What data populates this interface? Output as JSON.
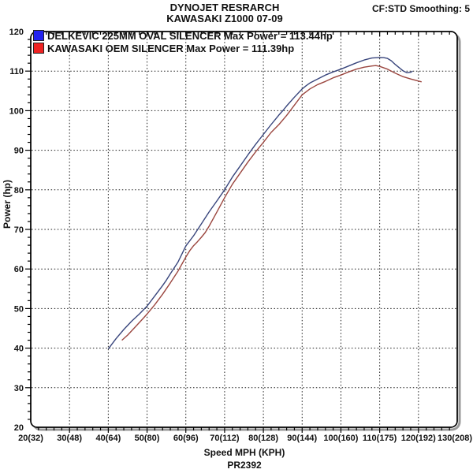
{
  "header": {
    "title_line1": "DYNOJET RESRARCH",
    "title_line2": "KAWASAKI Z1000 07-09",
    "cf_text": "CF:STD Smoothing: 5"
  },
  "chart_data": {
    "type": "line",
    "xlabel": "Speed MPH (KPH)",
    "ylabel": "Power (hp)",
    "footer": "PR2392",
    "xlim": [
      20,
      130
    ],
    "ylim": [
      20,
      120
    ],
    "x_major_step": 10,
    "x_minor_step": 2,
    "y_major_step": 10,
    "y_minor_step": 2,
    "grid": "dotted",
    "legend_position": "top-left-inside",
    "x_tick_labels": [
      "20(32)",
      "30(48)",
      "40(64)",
      "50(80)",
      "60(96)",
      "70(112)",
      "80(128)",
      "90(144)",
      "100(160)",
      "110(175)",
      "120(192)",
      "130(208)"
    ],
    "y_tick_labels": [
      "20",
      "30",
      "40",
      "50",
      "60",
      "70",
      "80",
      "90",
      "100",
      "110",
      "120"
    ],
    "series": [
      {
        "name": "DELKEVIC 225MM OVAL SILENCER Max Power = 113.44hp",
        "max_power_hp": 113.44,
        "color": "#38457c",
        "swatch_color": "#2222ee",
        "points": [
          [
            40,
            39.8
          ],
          [
            42,
            42.4
          ],
          [
            44,
            44.7
          ],
          [
            46,
            46.8
          ],
          [
            48,
            48.6
          ],
          [
            50,
            50.6
          ],
          [
            52,
            53.2
          ],
          [
            54,
            55.8
          ],
          [
            55,
            57.2
          ],
          [
            56,
            58.8
          ],
          [
            58,
            61.8
          ],
          [
            60,
            65.8
          ],
          [
            62,
            68.4
          ],
          [
            64,
            71.4
          ],
          [
            66,
            74.4
          ],
          [
            68,
            77.2
          ],
          [
            70,
            80
          ],
          [
            72,
            83.2
          ],
          [
            74,
            86
          ],
          [
            76,
            88.8
          ],
          [
            78,
            91.5
          ],
          [
            80,
            94
          ],
          [
            82,
            96.5
          ],
          [
            84,
            98.9
          ],
          [
            85,
            100
          ],
          [
            86,
            101.2
          ],
          [
            88,
            103.4
          ],
          [
            90,
            105.5
          ],
          [
            91,
            106.3
          ],
          [
            92,
            107
          ],
          [
            94,
            108
          ],
          [
            96,
            109
          ],
          [
            98,
            109.8
          ],
          [
            100,
            110.5
          ],
          [
            102,
            111.3
          ],
          [
            104,
            112.1
          ],
          [
            106,
            112.8
          ],
          [
            108,
            113.3
          ],
          [
            110,
            113.44
          ],
          [
            111,
            113.4
          ],
          [
            112,
            113.2
          ],
          [
            113,
            112.6
          ],
          [
            114,
            111.7
          ],
          [
            115,
            110.9
          ],
          [
            116,
            110.1
          ],
          [
            117,
            109.6
          ],
          [
            118,
            109.7
          ],
          [
            118.5,
            110
          ]
        ]
      },
      {
        "name": "KAWASAKI OEM SILENCER Max Power = 111.39hp",
        "max_power_hp": 111.39,
        "color": "#9b463f",
        "swatch_color": "#ee2222",
        "points": [
          [
            43.5,
            42
          ],
          [
            45,
            43.3
          ],
          [
            47,
            45.4
          ],
          [
            49,
            47.5
          ],
          [
            50,
            48.6
          ],
          [
            52,
            51
          ],
          [
            54,
            53.6
          ],
          [
            56,
            56.5
          ],
          [
            58,
            59.5
          ],
          [
            60,
            63
          ],
          [
            61,
            64.6
          ],
          [
            62,
            65.9
          ],
          [
            63,
            66.9
          ],
          [
            64,
            68
          ],
          [
            65,
            69.2
          ],
          [
            66,
            70.8
          ],
          [
            68,
            74.4
          ],
          [
            70,
            78
          ],
          [
            72,
            81.4
          ],
          [
            74,
            84.2
          ],
          [
            76,
            87
          ],
          [
            78,
            89.6
          ],
          [
            80,
            92
          ],
          [
            82,
            94.5
          ],
          [
            84,
            96.5
          ],
          [
            86,
            98.8
          ],
          [
            88,
            101.4
          ],
          [
            90,
            104
          ],
          [
            92,
            105.5
          ],
          [
            94,
            106.6
          ],
          [
            96,
            107.4
          ],
          [
            98,
            108.3
          ],
          [
            100,
            109
          ],
          [
            102,
            109.8
          ],
          [
            104,
            110.5
          ],
          [
            106,
            111
          ],
          [
            108,
            111.3
          ],
          [
            109,
            111.39
          ],
          [
            110,
            111.2
          ],
          [
            112,
            110.5
          ],
          [
            114,
            109.5
          ],
          [
            116,
            108.6
          ],
          [
            118,
            108
          ],
          [
            120,
            107.5
          ],
          [
            120.8,
            107.3
          ]
        ]
      }
    ]
  }
}
